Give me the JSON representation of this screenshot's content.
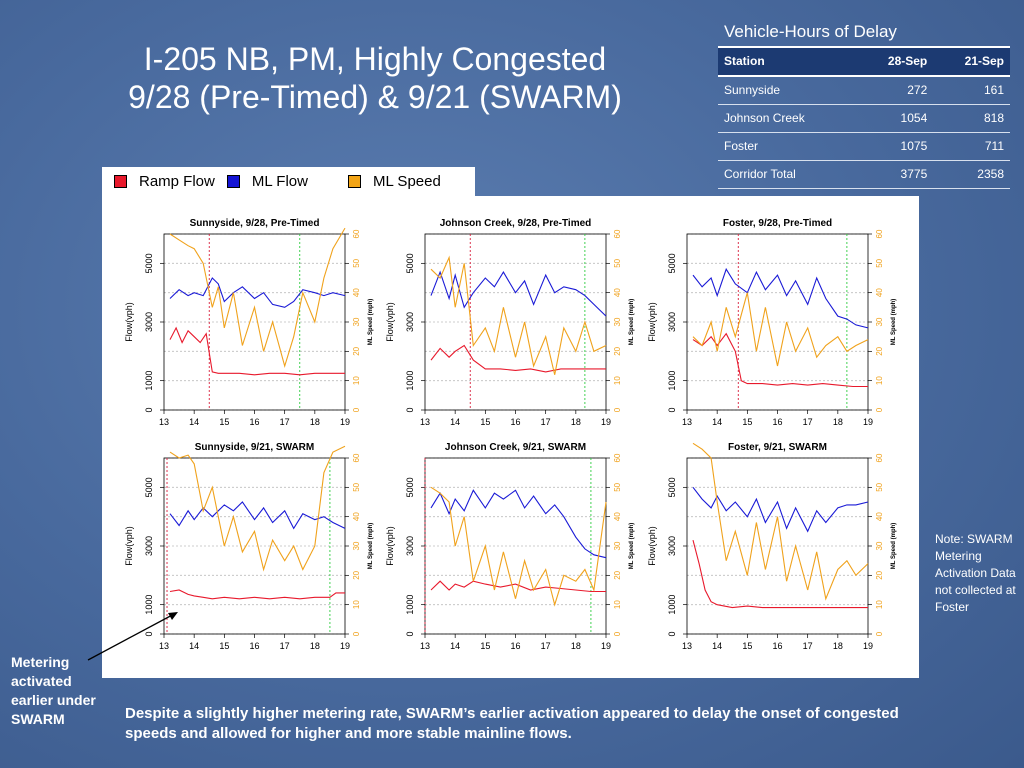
{
  "slide": {
    "title_line1": "I-205 NB, PM, Highly Congested",
    "title_line2": "9/28 (Pre-Timed) & 9/21 (SWARM)",
    "note": "Note: SWARM Metering Activation Data not collected at Foster",
    "callout": "Metering activated earlier under SWARM",
    "conclusion": "Despite a slightly higher metering rate, SWARM’s earlier activation appeared to delay the onset of congested speeds and allowed for higher and more stable mainline flows."
  },
  "delay_table": {
    "caption": "Vehicle-Hours of Delay",
    "headers": [
      "Station",
      "28-Sep",
      "21-Sep"
    ],
    "rows": [
      [
        "Sunnyside",
        "272",
        "161"
      ],
      [
        "Johnson Creek",
        "1054",
        "818"
      ],
      [
        "Foster",
        "1075",
        "711"
      ],
      [
        "Corridor Total",
        "3775",
        "2358"
      ]
    ]
  },
  "legend": [
    {
      "label": "Ramp Flow",
      "color": "#e8192c"
    },
    {
      "label": "ML Flow",
      "color": "#1414d4"
    },
    {
      "label": "ML Speed",
      "color": "#f2a415"
    }
  ],
  "colors": {
    "ramp": "#e8192c",
    "ml_flow": "#1a1ad6",
    "ml_speed": "#f0a21c",
    "activation": "#d91e3c",
    "end": "#2ecc40"
  },
  "chart_data": [
    {
      "type": "line",
      "title": "Sunnyside, 9/28, Pre-Timed",
      "ylabel": "Flow(vph)",
      "y2label": "ML Speed (mph)",
      "xlim": [
        13,
        19
      ],
      "ylim": [
        0,
        6000
      ],
      "y2lim": [
        0,
        60
      ],
      "xticks": [
        "13",
        "14",
        "15",
        "16",
        "17",
        "18",
        "19"
      ],
      "yticks": [
        "0",
        "1000",
        "3000",
        "5000"
      ],
      "y2ticks": [
        "0",
        "10",
        "20",
        "30",
        "40",
        "50",
        "60"
      ],
      "vlines": {
        "activation": 14.5,
        "end": 17.5
      },
      "series": [
        {
          "x": [
            13.2,
            13.4,
            13.6,
            13.8,
            14.0,
            14.2,
            14.4,
            14.6,
            14.8,
            15.5,
            16.0,
            16.5,
            17.0,
            17.5,
            18.0,
            18.5,
            19.0
          ],
          "values": [
            2400,
            2800,
            2300,
            2700,
            2500,
            2300,
            2600,
            1300,
            1250,
            1250,
            1200,
            1250,
            1250,
            1200,
            1250,
            1250,
            1250
          ]
        },
        {
          "x": [
            13.2,
            13.5,
            13.8,
            14.0,
            14.3,
            14.6,
            14.8,
            15.0,
            15.3,
            15.6,
            16.0,
            16.3,
            16.6,
            17.0,
            17.3,
            17.6,
            18.0,
            18.3,
            18.6,
            19.0
          ],
          "values": [
            3800,
            4100,
            3900,
            4000,
            3900,
            4500,
            4300,
            3700,
            4000,
            4200,
            3800,
            4000,
            3600,
            3500,
            3700,
            4100,
            4000,
            3900,
            4000,
            3900
          ]
        },
        {
          "x": [
            13.2,
            13.5,
            13.8,
            14.0,
            14.3,
            14.6,
            14.8,
            15.0,
            15.3,
            15.6,
            16.0,
            16.3,
            16.6,
            17.0,
            17.3,
            17.6,
            18.0,
            18.3,
            18.6,
            19.0
          ],
          "values": [
            60,
            58,
            56,
            55,
            50,
            35,
            42,
            28,
            40,
            22,
            35,
            20,
            30,
            15,
            25,
            40,
            30,
            45,
            55,
            62
          ]
        }
      ]
    },
    {
      "type": "line",
      "title": "Johnson Creek, 9/28, Pre-Timed",
      "ylabel": "Flow(vph)",
      "y2label": "ML Speed (mph)",
      "xlim": [
        13,
        19
      ],
      "ylim": [
        0,
        6000
      ],
      "y2lim": [
        0,
        60
      ],
      "xticks": [
        "13",
        "14",
        "15",
        "16",
        "17",
        "18",
        "19"
      ],
      "yticks": [
        "0",
        "1000",
        "3000",
        "5000"
      ],
      "y2ticks": [
        "0",
        "10",
        "20",
        "30",
        "40",
        "50",
        "60"
      ],
      "vlines": {
        "activation": 14.5,
        "end": 18.3
      },
      "series": [
        {
          "x": [
            13.2,
            13.5,
            13.8,
            14.0,
            14.3,
            14.6,
            15.0,
            15.5,
            16.0,
            16.5,
            17.0,
            17.5,
            18.0,
            18.5,
            19.0
          ],
          "values": [
            1700,
            2100,
            1800,
            2000,
            2200,
            1700,
            1400,
            1400,
            1350,
            1400,
            1300,
            1400,
            1400,
            1400,
            1400
          ]
        },
        {
          "x": [
            13.2,
            13.5,
            13.8,
            14.0,
            14.3,
            14.6,
            15.0,
            15.3,
            15.6,
            16.0,
            16.3,
            16.6,
            17.0,
            17.3,
            17.6,
            18.0,
            18.3,
            18.6,
            19.0
          ],
          "values": [
            3900,
            4700,
            3800,
            4600,
            3500,
            4000,
            4500,
            4200,
            4700,
            4000,
            4400,
            3600,
            4600,
            4000,
            4200,
            4100,
            3900,
            3600,
            3200
          ]
        },
        {
          "x": [
            13.2,
            13.5,
            13.8,
            14.0,
            14.3,
            14.6,
            15.0,
            15.3,
            15.6,
            16.0,
            16.3,
            16.6,
            17.0,
            17.3,
            17.6,
            18.0,
            18.3,
            18.6,
            19.0
          ],
          "values": [
            48,
            45,
            52,
            35,
            50,
            22,
            28,
            20,
            35,
            18,
            30,
            15,
            25,
            12,
            28,
            20,
            30,
            20,
            22
          ]
        }
      ]
    },
    {
      "type": "line",
      "title": "Foster, 9/28, Pre-Timed",
      "ylabel": "Flow(vph)",
      "y2label": "ML Speed (mph)",
      "xlim": [
        13,
        19
      ],
      "ylim": [
        0,
        6000
      ],
      "y2lim": [
        0,
        60
      ],
      "xticks": [
        "13",
        "14",
        "15",
        "16",
        "17",
        "18",
        "19"
      ],
      "yticks": [
        "0",
        "1000",
        "3000",
        "5000"
      ],
      "y2ticks": [
        "0",
        "10",
        "20",
        "30",
        "40",
        "50",
        "60"
      ],
      "vlines": {
        "activation": 14.7,
        "end": 18.3
      },
      "series": [
        {
          "x": [
            13.2,
            13.5,
            13.8,
            14.0,
            14.3,
            14.6,
            14.8,
            15.0,
            15.5,
            16.0,
            16.5,
            17.0,
            17.5,
            18.0,
            18.5,
            19.0
          ],
          "values": [
            2400,
            2200,
            2500,
            2200,
            2600,
            2000,
            1000,
            900,
            900,
            850,
            900,
            850,
            900,
            850,
            800,
            800
          ]
        },
        {
          "x": [
            13.2,
            13.5,
            13.8,
            14.0,
            14.3,
            14.6,
            15.0,
            15.3,
            15.6,
            16.0,
            16.3,
            16.6,
            17.0,
            17.3,
            17.6,
            18.0,
            18.3,
            18.6,
            19.0
          ],
          "values": [
            4600,
            4200,
            4500,
            3900,
            4800,
            4300,
            4000,
            4700,
            4100,
            4600,
            3900,
            4400,
            3600,
            4500,
            3800,
            3200,
            3100,
            2900,
            2800
          ]
        },
        {
          "x": [
            13.2,
            13.5,
            13.8,
            14.0,
            14.3,
            14.6,
            15.0,
            15.3,
            15.6,
            16.0,
            16.3,
            16.6,
            17.0,
            17.3,
            17.6,
            18.0,
            18.3,
            18.6,
            19.0
          ],
          "values": [
            25,
            22,
            30,
            20,
            35,
            25,
            40,
            20,
            35,
            15,
            30,
            20,
            28,
            18,
            22,
            25,
            20,
            22,
            24
          ]
        }
      ]
    },
    {
      "type": "line",
      "title": "Sunnyside, 9/21, SWARM",
      "ylabel": "Flow(vph)",
      "y2label": "ML Speed (mph)",
      "xlim": [
        13,
        19
      ],
      "ylim": [
        0,
        6000
      ],
      "y2lim": [
        0,
        60
      ],
      "xticks": [
        "13",
        "14",
        "15",
        "16",
        "17",
        "18",
        "19"
      ],
      "yticks": [
        "0",
        "1000",
        "3000",
        "5000"
      ],
      "y2ticks": [
        "0",
        "10",
        "20",
        "30",
        "40",
        "50",
        "60"
      ],
      "vlines": {
        "activation": 13.1,
        "end": 18.5
      },
      "series": [
        {
          "x": [
            13.2,
            13.5,
            13.8,
            14.0,
            14.3,
            14.6,
            15.0,
            15.5,
            16.0,
            16.5,
            17.0,
            17.5,
            18.0,
            18.5,
            18.7,
            19.0
          ],
          "values": [
            1450,
            1500,
            1350,
            1300,
            1250,
            1200,
            1250,
            1200,
            1250,
            1200,
            1250,
            1200,
            1250,
            1250,
            1400,
            1400
          ]
        },
        {
          "x": [
            13.2,
            13.5,
            13.8,
            14.0,
            14.3,
            14.6,
            15.0,
            15.3,
            15.6,
            16.0,
            16.3,
            16.6,
            17.0,
            17.3,
            17.6,
            18.0,
            18.3,
            18.6,
            19.0
          ],
          "values": [
            4100,
            3700,
            4200,
            3900,
            4300,
            4000,
            4400,
            4200,
            4500,
            3900,
            4300,
            3800,
            4200,
            3600,
            4100,
            3900,
            4000,
            3800,
            3600
          ]
        },
        {
          "x": [
            13.2,
            13.5,
            13.8,
            14.0,
            14.3,
            14.6,
            15.0,
            15.3,
            15.6,
            16.0,
            16.3,
            16.6,
            17.0,
            17.3,
            17.6,
            18.0,
            18.3,
            18.6,
            19.0
          ],
          "values": [
            62,
            60,
            61,
            58,
            42,
            50,
            30,
            40,
            28,
            35,
            22,
            32,
            25,
            30,
            22,
            30,
            55,
            62,
            64
          ]
        }
      ]
    },
    {
      "type": "line",
      "title": "Johnson Creek, 9/21, SWARM",
      "ylabel": "Flow(vph)",
      "y2label": "ML Speed (mph)",
      "xlim": [
        13,
        19
      ],
      "ylim": [
        0,
        6000
      ],
      "y2lim": [
        0,
        60
      ],
      "xticks": [
        "13",
        "14",
        "15",
        "16",
        "17",
        "18",
        "19"
      ],
      "yticks": [
        "0",
        "1000",
        "3000",
        "5000"
      ],
      "y2ticks": [
        "0",
        "10",
        "20",
        "30",
        "40",
        "50",
        "60"
      ],
      "vlines": {
        "activation": 13.0,
        "end": 18.5
      },
      "series": [
        {
          "x": [
            13.2,
            13.5,
            13.8,
            14.0,
            14.3,
            14.6,
            15.0,
            15.5,
            16.0,
            16.5,
            17.0,
            17.5,
            18.0,
            18.5,
            19.0
          ],
          "values": [
            1500,
            1800,
            1500,
            1700,
            1600,
            1800,
            1700,
            1600,
            1700,
            1500,
            1600,
            1550,
            1500,
            1450,
            1450
          ]
        },
        {
          "x": [
            13.2,
            13.5,
            13.8,
            14.0,
            14.3,
            14.6,
            15.0,
            15.3,
            15.6,
            16.0,
            16.3,
            16.6,
            17.0,
            17.3,
            17.6,
            18.0,
            18.3,
            18.6,
            19.0
          ],
          "values": [
            4300,
            4800,
            4100,
            4600,
            4200,
            4900,
            4300,
            4800,
            4600,
            4900,
            4300,
            4700,
            4100,
            4400,
            4000,
            3300,
            2900,
            2700,
            2600
          ]
        },
        {
          "x": [
            13.2,
            13.5,
            13.8,
            14.0,
            14.3,
            14.6,
            15.0,
            15.3,
            15.6,
            16.0,
            16.3,
            16.6,
            17.0,
            17.3,
            17.6,
            18.0,
            18.3,
            18.6,
            19.0
          ],
          "values": [
            50,
            48,
            45,
            30,
            40,
            18,
            30,
            15,
            28,
            12,
            25,
            15,
            22,
            10,
            20,
            18,
            22,
            15,
            45
          ]
        }
      ]
    },
    {
      "type": "line",
      "title": "Foster, 9/21, SWARM",
      "ylabel": "Flow(vph)",
      "y2label": "ML Speed (mph)",
      "xlim": [
        13,
        19
      ],
      "ylim": [
        0,
        6000
      ],
      "y2lim": [
        0,
        60
      ],
      "xticks": [
        "13",
        "14",
        "15",
        "16",
        "17",
        "18",
        "19"
      ],
      "yticks": [
        "0",
        "1000",
        "3000",
        "5000"
      ],
      "y2ticks": [
        "0",
        "10",
        "20",
        "30",
        "40",
        "50",
        "60"
      ],
      "vlines": {},
      "series": [
        {
          "x": [
            13.2,
            13.4,
            13.6,
            13.8,
            14.0,
            14.5,
            15.0,
            15.5,
            16.0,
            16.5,
            17.0,
            17.5,
            18.0,
            18.5,
            19.0
          ],
          "values": [
            3200,
            2400,
            1500,
            1100,
            1000,
            900,
            950,
            900,
            900,
            900,
            900,
            900,
            900,
            900,
            900
          ]
        },
        {
          "x": [
            13.2,
            13.5,
            13.8,
            14.0,
            14.3,
            14.6,
            15.0,
            15.3,
            15.6,
            16.0,
            16.3,
            16.6,
            17.0,
            17.3,
            17.6,
            18.0,
            18.3,
            18.6,
            19.0
          ],
          "values": [
            5000,
            4600,
            4300,
            4700,
            4200,
            4500,
            4000,
            4600,
            3800,
            4500,
            3600,
            4300,
            3500,
            4200,
            3800,
            4300,
            4400,
            4400,
            4500
          ]
        },
        {
          "x": [
            13.2,
            13.5,
            13.8,
            14.0,
            14.3,
            14.6,
            15.0,
            15.3,
            15.6,
            16.0,
            16.3,
            16.6,
            17.0,
            17.3,
            17.6,
            18.0,
            18.3,
            18.6,
            19.0
          ],
          "values": [
            65,
            63,
            60,
            45,
            25,
            35,
            20,
            38,
            22,
            40,
            18,
            30,
            15,
            28,
            12,
            22,
            25,
            20,
            24
          ]
        }
      ]
    }
  ]
}
